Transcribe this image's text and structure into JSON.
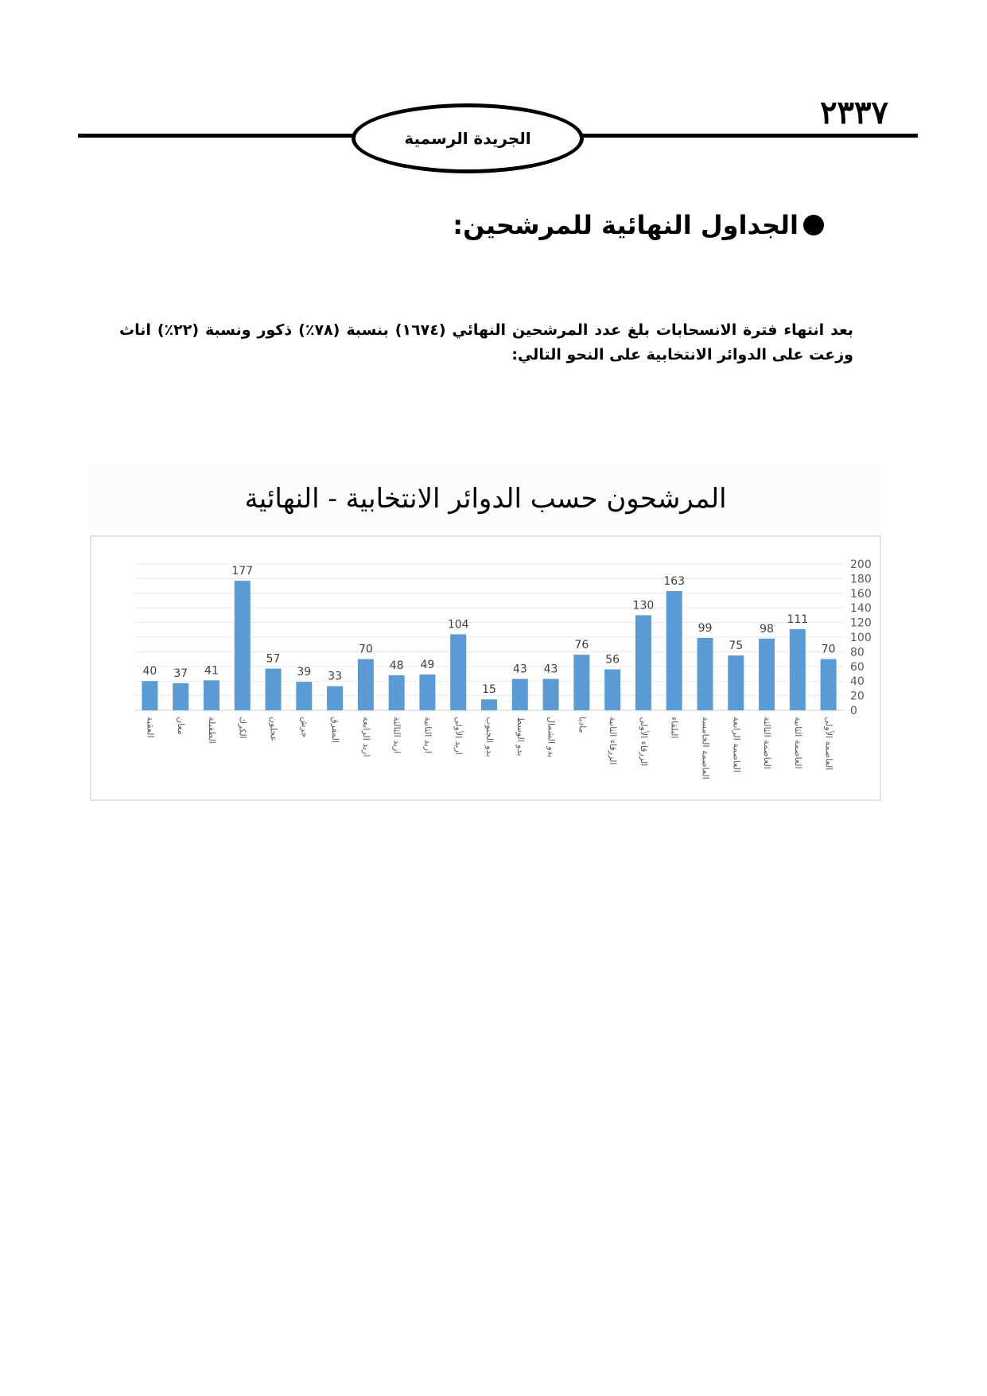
{
  "header": {
    "page_number": "٢٣٣٧",
    "publication": "الجريدة الرسمية"
  },
  "section": {
    "heading": "الجداول النهائية للمرشحين:",
    "paragraph": "بعد انتهاء فترة الانسحابات بلغ عدد المرشحين النهائي (١٦٧٤) بنسبة (٧٨٪) ذكور ونسبة (٢٢٪) اناث وزعت على الدوائر الانتخابية على النحو التالي:"
  },
  "chart_data": {
    "type": "bar",
    "title": "المرشحون حسب الدوائر الانتخابية - النهائية",
    "categories": [
      "العقبة",
      "معان",
      "الطفيلة",
      "الكرك",
      "عجلون",
      "جرش",
      "المفرق",
      "اربد الرابعة",
      "اربد الثالثة",
      "اربد الثانية",
      "اربد الأولى",
      "بدو الجنوب",
      "بدو الوسط",
      "بدو الشمال",
      "مادبا",
      "الزرقاء الثانية",
      "الزرقاء الأولى",
      "البلقاء",
      "العاصمة الخامسة",
      "العاصمة الرابعة",
      "العاصمة الثالثة",
      "العاصمة الثانية",
      "العاصمة الأولى"
    ],
    "values": [
      40,
      37,
      41,
      177,
      57,
      39,
      33,
      70,
      48,
      49,
      104,
      15,
      43,
      43,
      76,
      56,
      130,
      163,
      99,
      75,
      98,
      111,
      70
    ],
    "ylim": [
      0,
      200
    ],
    "yticks": [
      0,
      20,
      40,
      60,
      80,
      100,
      120,
      140,
      160,
      180,
      200
    ],
    "yaxis_position": "right",
    "grid": true,
    "data_labels": true,
    "bar_color": "#5b9bd5",
    "xlabel": "",
    "ylabel": ""
  }
}
